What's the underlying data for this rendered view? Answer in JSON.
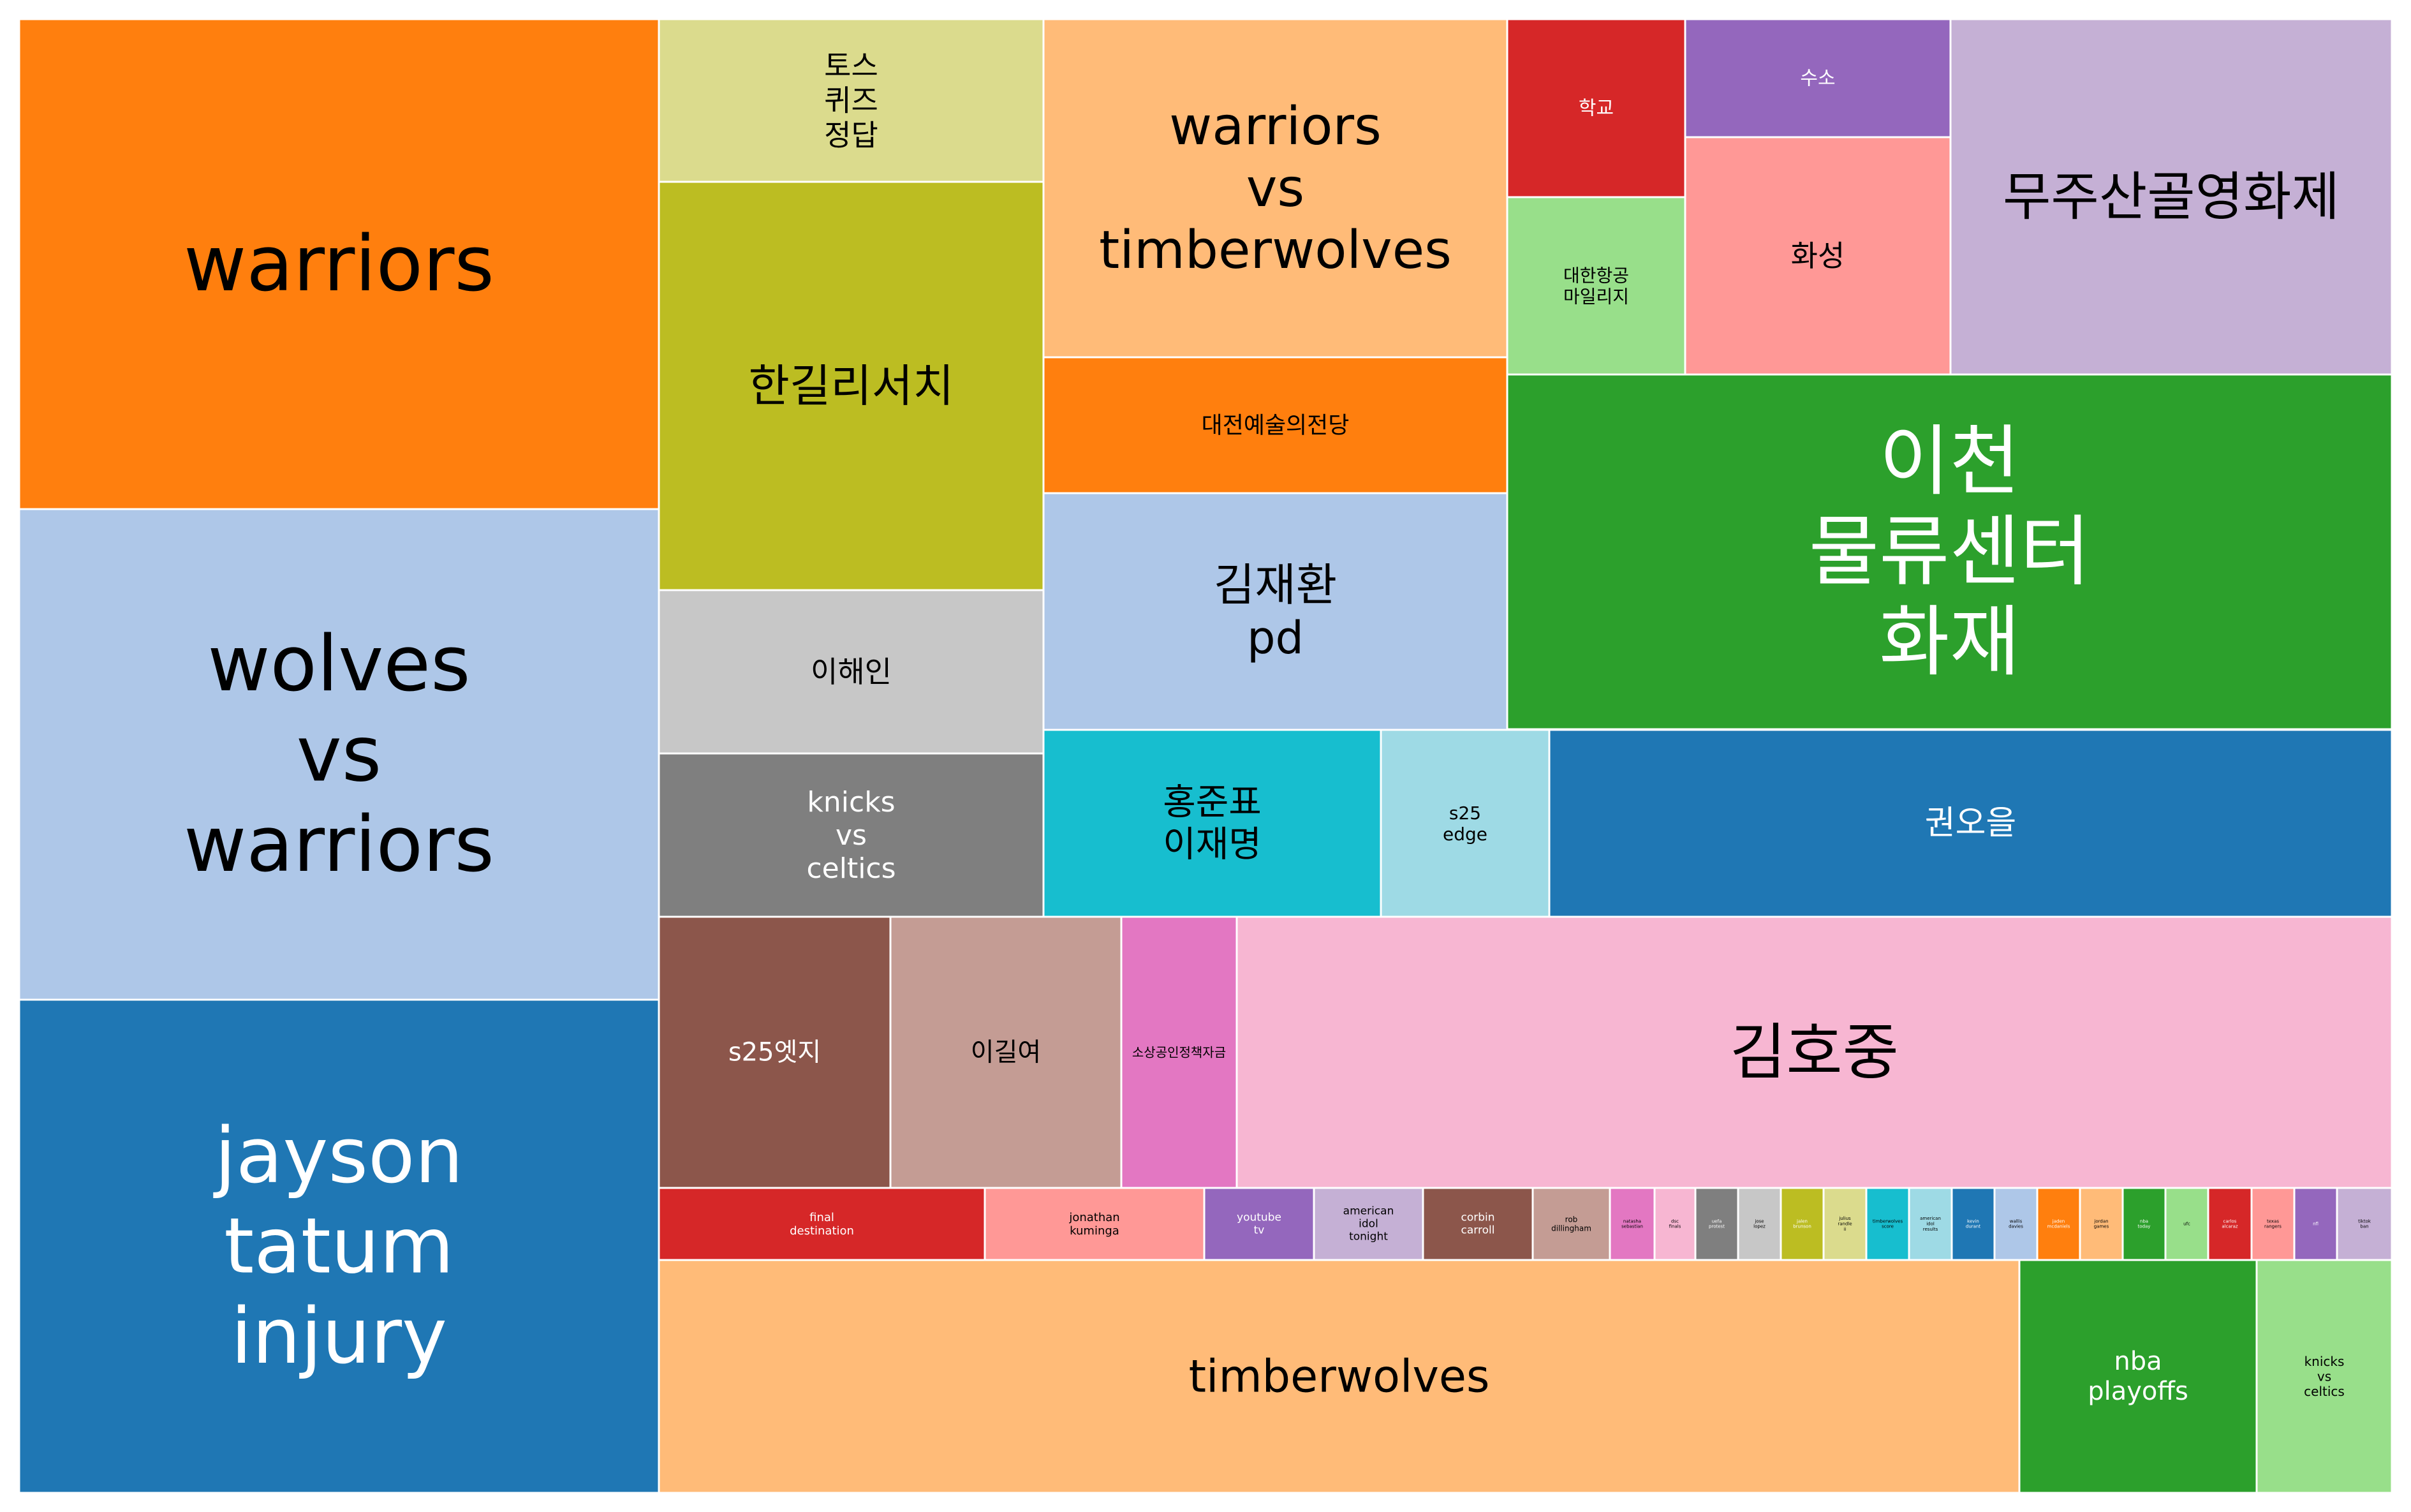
{
  "chart_data": {
    "type": "treemap",
    "title": "",
    "color_palette": "tab20",
    "items": [
      {
        "label": "warriors",
        "value": 9.2,
        "color": "#ff7f0e"
      },
      {
        "label": "wolves\nvs\nwarriors",
        "value": 9.2,
        "color": "#aec7e8"
      },
      {
        "label": "jayson\ntatum\ninjury",
        "value": 9.2,
        "color": "#1f77b4"
      },
      {
        "label": "토스\n퀴즈\n정답",
        "value": 1.84,
        "color": "#dbdb8d"
      },
      {
        "label": "한길리서치",
        "value": 4.6,
        "color": "#bcbd22"
      },
      {
        "label": "이해인",
        "value": 1.84,
        "color": "#c7c7c7"
      },
      {
        "label": "knicks\nvs\nceltics",
        "value": 1.84,
        "color": "#7f7f7f"
      },
      {
        "label": "warriors\nvs\ntimberwolves",
        "value": 4.6,
        "color": "#ffbb78"
      },
      {
        "label": "대전예술의전당",
        "value": 1.84,
        "color": "#ff7f0e"
      },
      {
        "label": "김재환\npd",
        "value": 3.68,
        "color": "#aec7e8"
      },
      {
        "label": "학교",
        "value": 0.92,
        "color": "#d62728"
      },
      {
        "label": "대한항공\n마일리지",
        "value": 0.92,
        "color": "#98df8a"
      },
      {
        "label": "수소",
        "value": 0.92,
        "color": "#9467bd"
      },
      {
        "label": "화성",
        "value": 1.38,
        "color": "#ff9896"
      },
      {
        "label": "무주산골영화제",
        "value": 2.76,
        "color": "#c5b0d5"
      },
      {
        "label": "이천\n물류센터\n화재",
        "value": 9.2,
        "color": "#2ca02c"
      },
      {
        "label": "홍준표\n이재명",
        "value": 1.38,
        "color": "#17becf"
      },
      {
        "label": "s25\nedge",
        "value": 0.92,
        "color": "#9edae5"
      },
      {
        "label": "권오을",
        "value": 4.6,
        "color": "#1f77b4"
      },
      {
        "label": "s25엣지",
        "value": 1.84,
        "color": "#8c564b"
      },
      {
        "label": "이길여",
        "value": 1.84,
        "color": "#c49c94"
      },
      {
        "label": "소상공인정책자금",
        "value": 0.92,
        "color": "#e377c2"
      },
      {
        "label": "김호중",
        "value": 9.2,
        "color": "#f7b6d2"
      },
      {
        "label": "final\ndestination",
        "value": 0.46,
        "color": "#d62728"
      },
      {
        "label": "jonathan\nkuminga",
        "value": 0.46,
        "color": "#ff9896"
      },
      {
        "label": "youtube\ntv",
        "value": 0.23,
        "color": "#9467bd"
      },
      {
        "label": "american\nidol\ntonight",
        "value": 0.23,
        "color": "#c5b0d5"
      },
      {
        "label": "corbin\ncarroll",
        "value": 0.23,
        "color": "#8c564b"
      },
      {
        "label": "rob\ndillingham",
        "value": 0.18,
        "color": "#c49c94"
      },
      {
        "label": "natasha\nsebastian",
        "value": 0.1,
        "color": "#e377c2"
      },
      {
        "label": "dsc\nfinals",
        "value": 0.1,
        "color": "#f7b6d2"
      },
      {
        "label": "uefa\nprotest",
        "value": 0.1,
        "color": "#7f7f7f"
      },
      {
        "label": "jose\nlopez",
        "value": 0.1,
        "color": "#c7c7c7"
      },
      {
        "label": "jalen\nbrunson",
        "value": 0.1,
        "color": "#bcbd22"
      },
      {
        "label": "julius\nrandle\nii",
        "value": 0.1,
        "color": "#dbdb8d"
      },
      {
        "label": "timberwolves\nscore",
        "value": 0.1,
        "color": "#17becf"
      },
      {
        "label": "american\nidol\nresults",
        "value": 0.1,
        "color": "#9edae5"
      },
      {
        "label": "kevin\ndurant",
        "value": 0.1,
        "color": "#1f77b4"
      },
      {
        "label": "wallis\ndavies",
        "value": 0.1,
        "color": "#aec7e8"
      },
      {
        "label": "jaden\nmcdaniels",
        "value": 0.1,
        "color": "#ff7f0e"
      },
      {
        "label": "jordan\ngames",
        "value": 0.1,
        "color": "#ffbb78"
      },
      {
        "label": "nba\ntoday",
        "value": 0.1,
        "color": "#2ca02c"
      },
      {
        "label": "ufc",
        "value": 0.1,
        "color": "#98df8a"
      },
      {
        "label": "carlos\nalcaraz",
        "value": 0.1,
        "color": "#d62728"
      },
      {
        "label": "texas\nrangers",
        "value": 0.1,
        "color": "#ff9896"
      },
      {
        "label": "nfl",
        "value": 0.1,
        "color": "#9467bd"
      },
      {
        "label": "tiktok\nban",
        "value": 0.1,
        "color": "#c5b0d5"
      },
      {
        "label": "timberwolves",
        "value": 4.6,
        "color": "#ffbb78"
      },
      {
        "label": "nba\nplayoffs",
        "value": 0.92,
        "color": "#2ca02c"
      },
      {
        "label": "knicks\nvs\nceltics",
        "value": 0.46,
        "color": "#98df8a"
      }
    ]
  }
}
